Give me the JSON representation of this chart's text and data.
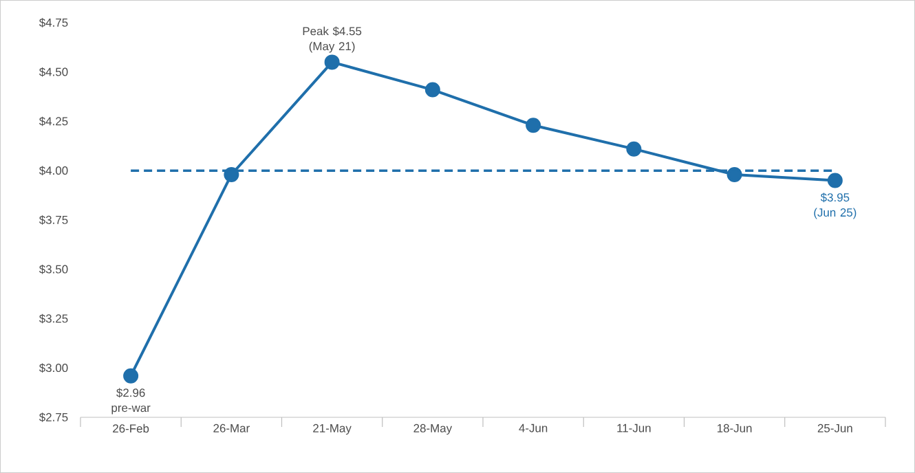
{
  "chart_data": {
    "type": "line",
    "categories": [
      "26-Feb",
      "26-Mar",
      "21-May",
      "28-May",
      "4-Jun",
      "11-Jun",
      "18-Jun",
      "25-Jun"
    ],
    "series": [
      {
        "color": "#1f6fab",
        "values": [
          2.96,
          3.98,
          4.55,
          4.41,
          4.23,
          4.11,
          3.98,
          3.95
        ]
      }
    ],
    "ylim": [
      2.75,
      4.75
    ],
    "yticks": [
      {
        "value": 2.75,
        "label": "$2.75"
      },
      {
        "value": 3.0,
        "label": "$3.00"
      },
      {
        "value": 3.25,
        "label": "$3.25"
      },
      {
        "value": 3.5,
        "label": "$3.50"
      },
      {
        "value": 3.75,
        "label": "$3.75"
      },
      {
        "value": 4.0,
        "label": "$4.00"
      },
      {
        "value": 4.25,
        "label": "$4.25"
      },
      {
        "value": 4.5,
        "label": "$4.50"
      },
      {
        "value": 4.75,
        "label": "$4.75"
      }
    ],
    "marker": "circle",
    "line_style": "solid",
    "ref_lines": [
      {
        "axis": "y",
        "value": 4.0,
        "color": "#1f6fab",
        "line_style": "dashed"
      }
    ],
    "annotations": [
      {
        "text": "$2.96 pre-war",
        "x": "26-Feb",
        "y": 2.96
      },
      {
        "text": "Peak $4.55 (May 21)",
        "x": "21-May",
        "y": 4.55
      },
      {
        "text": "$3.95 (Jun 25)",
        "x": "25-Jun",
        "y": 3.95
      }
    ]
  }
}
